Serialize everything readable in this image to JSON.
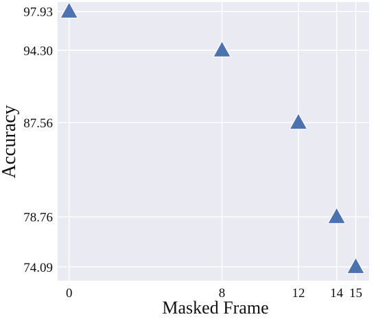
{
  "chart_data": {
    "type": "scatter",
    "xlabel": "Masked Frame",
    "ylabel": "Accuracy",
    "x": [
      0,
      8,
      12,
      14,
      15
    ],
    "y": [
      97.93,
      94.3,
      87.56,
      78.76,
      74.09
    ],
    "xticks": [
      0,
      8,
      12,
      14,
      15
    ],
    "yticks": [
      "97.93",
      "94.30",
      "87.56",
      "78.76",
      "74.09"
    ],
    "xlim": [
      -0.6,
      15.7
    ],
    "ylim": [
      72.8,
      98.8
    ],
    "marker": "triangle",
    "grid": true,
    "colors": {
      "background": "#eaeaf2",
      "grid": "#ffffff",
      "marker_fill": "#4c72b0",
      "marker_edge": "#ffffff"
    }
  }
}
